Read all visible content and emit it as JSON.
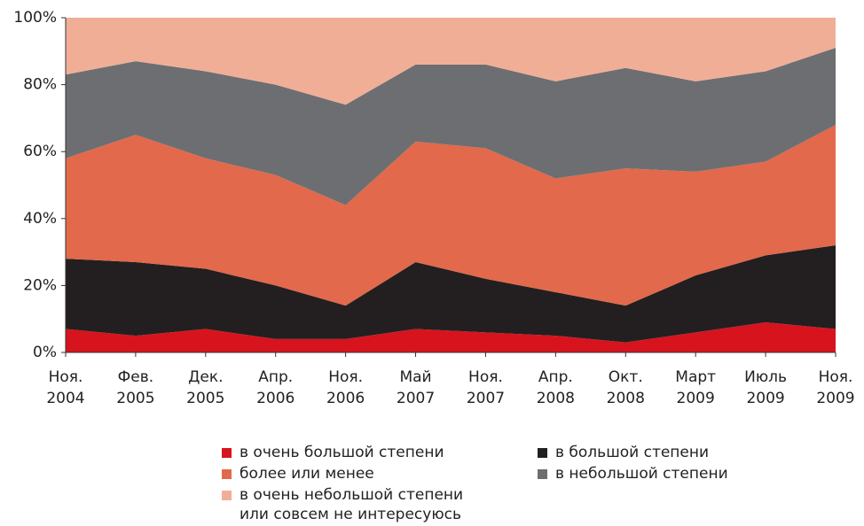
{
  "chart_data": {
    "type": "stacked_area",
    "categories": [
      "Ноя.\n2004",
      "Фев.\n2005",
      "Дек.\n2005",
      "Апр.\n2006",
      "Ноя.\n2006",
      "Май\n2007",
      "Ноя.\n2007",
      "Апр.\n2008",
      "Окт.\n2008",
      "Март\n2009",
      "Июль\n2009",
      "Ноя.\n2009"
    ],
    "series": [
      {
        "name": "в очень большой степени",
        "color": "#d7141d",
        "values": [
          7,
          5,
          7,
          4,
          4,
          7,
          6,
          5,
          3,
          6,
          9,
          7
        ]
      },
      {
        "name": "в большой степени",
        "color": "#231f20",
        "values": [
          21,
          22,
          18,
          16,
          10,
          20,
          16,
          13,
          11,
          17,
          20,
          25
        ]
      },
      {
        "name": "более или менее",
        "color": "#e2694b",
        "values": [
          30,
          38,
          33,
          33,
          30,
          36,
          39,
          34,
          41,
          31,
          28,
          36
        ]
      },
      {
        "name": "в небольшой степени",
        "color": "#6d6e71",
        "values": [
          25,
          22,
          26,
          27,
          30,
          23,
          25,
          29,
          30,
          27,
          27,
          23
        ]
      },
      {
        "name": "в очень небольшой степени\nили совсем не интересуюсь",
        "color": "#f0ae97",
        "values": [
          17,
          13,
          16,
          20,
          26,
          14,
          14,
          19,
          15,
          19,
          16,
          9
        ]
      }
    ],
    "ylim": [
      0,
      100
    ],
    "yticks": [
      {
        "value": 0,
        "label": "0%"
      },
      {
        "value": 20,
        "label": "20%"
      },
      {
        "value": 40,
        "label": "40%"
      },
      {
        "value": 60,
        "label": "60%"
      },
      {
        "value": 80,
        "label": "80%"
      },
      {
        "value": 100,
        "label": "100%"
      }
    ]
  }
}
